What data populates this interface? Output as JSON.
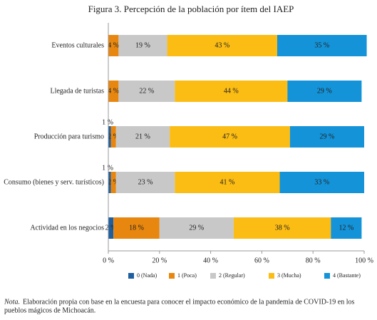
{
  "chart_data": {
    "type": "stacked_barh",
    "title": "Figura 3. Percepción de la población por ítem del IAEP",
    "categories": [
      "Eventos culturales",
      "Llegada de turistas",
      "Producción para turismo",
      "Consumo (bienes y serv. turísticos)",
      "Actividad en los negocios"
    ],
    "series": [
      {
        "name": "0 (Nada)",
        "color": "#1f5fa0",
        "values": [
          0,
          0,
          1,
          1,
          2
        ],
        "value_labels": [
          null,
          null,
          "1 %",
          "1 %",
          "2 %"
        ]
      },
      {
        "name": "1 (Poca)",
        "color": "#e8870f",
        "values": [
          4,
          4,
          2,
          2,
          18
        ],
        "value_labels": [
          "4 %",
          "4 %",
          "2 %",
          "2 %",
          "18 %"
        ]
      },
      {
        "name": "2 (Regular)",
        "color": "#c8c8c8",
        "values": [
          19,
          22,
          21,
          23,
          29
        ],
        "value_labels": [
          "19 %",
          "22 %",
          "21 %",
          "23 %",
          "29 %"
        ]
      },
      {
        "name": "3 (Mucha)",
        "color": "#fbbc14",
        "values": [
          43,
          44,
          47,
          41,
          38
        ],
        "value_labels": [
          "43 %",
          "44 %",
          "47 %",
          "41 %",
          "38 %"
        ]
      },
      {
        "name": "4 (Bastante)",
        "color": "#1493d8",
        "values": [
          35,
          29,
          29,
          33,
          12
        ],
        "value_labels": [
          "35 %",
          "29 %",
          "29 %",
          "33 %",
          "12 %"
        ]
      }
    ],
    "xlim": [
      0,
      100
    ],
    "xticks": [
      {
        "value": 0,
        "label": "0 %"
      },
      {
        "value": 20,
        "label": "20 %"
      },
      {
        "value": 40,
        "label": "40 %"
      },
      {
        "value": 60,
        "label": "60 %"
      },
      {
        "value": 80,
        "label": "80 %"
      },
      {
        "value": 100,
        "label": "100 %"
      }
    ],
    "legend": "bottom",
    "note_label": "Nota.",
    "note": [
      "Elaboración propia con base en la encuesta para conocer el impacto económico de la pandemia de COVID-19 en los",
      "pueblos mágicos de Michoacán."
    ]
  }
}
